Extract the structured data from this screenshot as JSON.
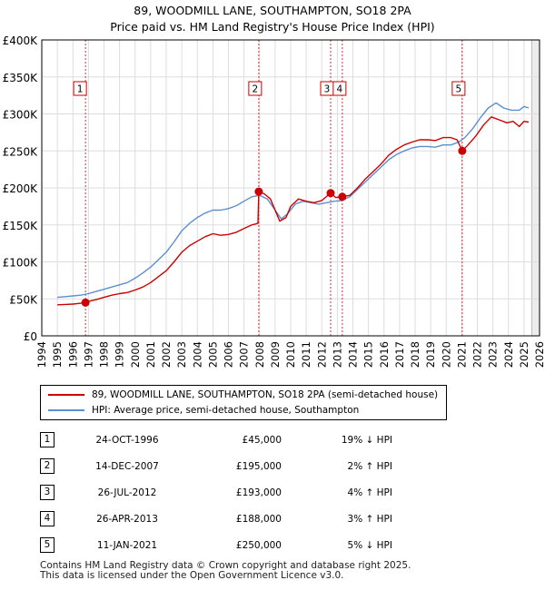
{
  "title_line1": "89, WOODMILL LANE, SOUTHAMPTON, SO18 2PA",
  "title_line2": "Price paid vs. HM Land Registry's House Price Index (HPI)",
  "colors": {
    "property": "#cc0000",
    "hpi": "#5b8fcf",
    "marker_line": "#cc0000",
    "grid": "#dddddd"
  },
  "chart_data": {
    "type": "line",
    "xlim": [
      1994,
      2026
    ],
    "ylim": [
      0,
      400000
    ],
    "y_ticks": [
      0,
      50000,
      100000,
      150000,
      200000,
      250000,
      300000,
      350000,
      400000
    ],
    "y_tick_labels": [
      "£0",
      "£50K",
      "£100K",
      "£150K",
      "£200K",
      "£250K",
      "£300K",
      "£350K",
      "£400K"
    ],
    "x_ticks": [
      1994,
      1995,
      1996,
      1997,
      1998,
      1999,
      2000,
      2001,
      2002,
      2003,
      2004,
      2005,
      2006,
      2007,
      2008,
      2009,
      2010,
      2011,
      2012,
      2013,
      2014,
      2015,
      2016,
      2017,
      2018,
      2019,
      2020,
      2021,
      2022,
      2023,
      2024,
      2025,
      2026
    ],
    "x_tick_labels": [
      "1994",
      "1995",
      "1996",
      "1997",
      "1998",
      "1999",
      "2000",
      "2001",
      "2002",
      "2003",
      "2004",
      "2005",
      "2006",
      "2007",
      "2008",
      "2009",
      "2010",
      "2011",
      "2012",
      "2013",
      "2014",
      "2015",
      "2016",
      "2017",
      "2018",
      "2019",
      "2020",
      "2021",
      "2022",
      "2023",
      "2024",
      "2025",
      "2026"
    ],
    "series": [
      {
        "name": "89, WOODMILL LANE, SOUTHAMPTON, SO18 2PA (semi-detached house)",
        "points": [
          [
            1995.0,
            42000
          ],
          [
            1995.5,
            42500
          ],
          [
            1996.0,
            43000
          ],
          [
            1996.5,
            44000
          ],
          [
            1996.81,
            45000
          ],
          [
            1997.0,
            46500
          ],
          [
            1997.5,
            49000
          ],
          [
            1998.0,
            52000
          ],
          [
            1998.5,
            55000
          ],
          [
            1999.0,
            57000
          ],
          [
            1999.5,
            58500
          ],
          [
            2000.0,
            62000
          ],
          [
            2000.5,
            66000
          ],
          [
            2001.0,
            72000
          ],
          [
            2001.5,
            80000
          ],
          [
            2002.0,
            88000
          ],
          [
            2002.5,
            100000
          ],
          [
            2003.0,
            113000
          ],
          [
            2003.5,
            122000
          ],
          [
            2004.0,
            128000
          ],
          [
            2004.5,
            134000
          ],
          [
            2005.0,
            138000
          ],
          [
            2005.5,
            136000
          ],
          [
            2006.0,
            137000
          ],
          [
            2006.5,
            140000
          ],
          [
            2007.0,
            145000
          ],
          [
            2007.5,
            150000
          ],
          [
            2007.9,
            152000
          ],
          [
            2007.95,
            195000
          ],
          [
            2008.3,
            192000
          ],
          [
            2008.7,
            185000
          ],
          [
            2009.0,
            170000
          ],
          [
            2009.3,
            155000
          ],
          [
            2009.7,
            160000
          ],
          [
            2010.0,
            175000
          ],
          [
            2010.5,
            185000
          ],
          [
            2011.0,
            182000
          ],
          [
            2011.5,
            180000
          ],
          [
            2012.0,
            183000
          ],
          [
            2012.57,
            193000
          ],
          [
            2012.9,
            187000
          ],
          [
            2013.32,
            188000
          ],
          [
            2013.8,
            190000
          ],
          [
            2014.3,
            200000
          ],
          [
            2014.8,
            212000
          ],
          [
            2015.3,
            222000
          ],
          [
            2015.8,
            232000
          ],
          [
            2016.3,
            244000
          ],
          [
            2016.8,
            252000
          ],
          [
            2017.3,
            258000
          ],
          [
            2017.8,
            262000
          ],
          [
            2018.3,
            265000
          ],
          [
            2018.8,
            265000
          ],
          [
            2019.3,
            264000
          ],
          [
            2019.8,
            268000
          ],
          [
            2020.3,
            268000
          ],
          [
            2020.7,
            265000
          ],
          [
            2021.03,
            250000
          ],
          [
            2021.4,
            258000
          ],
          [
            2021.9,
            270000
          ],
          [
            2022.4,
            285000
          ],
          [
            2022.9,
            296000
          ],
          [
            2023.4,
            292000
          ],
          [
            2023.9,
            288000
          ],
          [
            2024.3,
            290000
          ],
          [
            2024.7,
            283000
          ],
          [
            2025.0,
            290000
          ],
          [
            2025.3,
            289000
          ]
        ]
      },
      {
        "name": "HPI: Average price, semi-detached house, Southampton",
        "points": [
          [
            1995.0,
            52000
          ],
          [
            1995.5,
            53000
          ],
          [
            1996.0,
            54000
          ],
          [
            1996.5,
            55000
          ],
          [
            1997.0,
            57000
          ],
          [
            1997.5,
            60000
          ],
          [
            1998.0,
            63000
          ],
          [
            1998.5,
            66000
          ],
          [
            1999.0,
            69000
          ],
          [
            1999.5,
            72000
          ],
          [
            2000.0,
            78000
          ],
          [
            2000.5,
            85000
          ],
          [
            2001.0,
            93000
          ],
          [
            2001.5,
            103000
          ],
          [
            2002.0,
            113000
          ],
          [
            2002.5,
            127000
          ],
          [
            2003.0,
            142000
          ],
          [
            2003.5,
            152000
          ],
          [
            2004.0,
            160000
          ],
          [
            2004.5,
            166000
          ],
          [
            2005.0,
            170000
          ],
          [
            2005.5,
            170000
          ],
          [
            2006.0,
            172000
          ],
          [
            2006.5,
            176000
          ],
          [
            2007.0,
            182000
          ],
          [
            2007.5,
            188000
          ],
          [
            2008.0,
            190000
          ],
          [
            2008.5,
            185000
          ],
          [
            2009.0,
            170000
          ],
          [
            2009.4,
            158000
          ],
          [
            2009.8,
            165000
          ],
          [
            2010.3,
            178000
          ],
          [
            2010.8,
            182000
          ],
          [
            2011.3,
            180000
          ],
          [
            2011.8,
            178000
          ],
          [
            2012.3,
            180000
          ],
          [
            2012.8,
            182000
          ],
          [
            2013.3,
            183000
          ],
          [
            2013.8,
            188000
          ],
          [
            2014.3,
            198000
          ],
          [
            2014.8,
            208000
          ],
          [
            2015.3,
            218000
          ],
          [
            2015.8,
            228000
          ],
          [
            2016.3,
            238000
          ],
          [
            2016.8,
            245000
          ],
          [
            2017.3,
            250000
          ],
          [
            2017.8,
            254000
          ],
          [
            2018.3,
            256000
          ],
          [
            2018.8,
            256000
          ],
          [
            2019.3,
            255000
          ],
          [
            2019.8,
            258000
          ],
          [
            2020.3,
            258000
          ],
          [
            2020.8,
            262000
          ],
          [
            2021.2,
            268000
          ],
          [
            2021.7,
            280000
          ],
          [
            2022.2,
            295000
          ],
          [
            2022.7,
            308000
          ],
          [
            2023.2,
            315000
          ],
          [
            2023.7,
            308000
          ],
          [
            2024.2,
            305000
          ],
          [
            2024.7,
            305000
          ],
          [
            2025.0,
            310000
          ],
          [
            2025.3,
            308000
          ]
        ]
      }
    ],
    "sales": [
      {
        "n": "1",
        "x": 1996.81,
        "y": 45000
      },
      {
        "n": "2",
        "x": 2007.95,
        "y": 195000
      },
      {
        "n": "3",
        "x": 2012.57,
        "y": 193000
      },
      {
        "n": "4",
        "x": 2013.32,
        "y": 188000
      },
      {
        "n": "5",
        "x": 2021.03,
        "y": 250000
      }
    ],
    "future_from": 2025.5
  },
  "legend": {
    "property_label": "89, WOODMILL LANE, SOUTHAMPTON, SO18 2PA (semi-detached house)",
    "hpi_label": "HPI: Average price, semi-detached house, Southampton"
  },
  "sales_table": [
    {
      "n": "1",
      "date": "24-OCT-1996",
      "price": "£45,000",
      "hpi": "19% ↓ HPI"
    },
    {
      "n": "2",
      "date": "14-DEC-2007",
      "price": "£195,000",
      "hpi": "2% ↑ HPI"
    },
    {
      "n": "3",
      "date": "26-JUL-2012",
      "price": "£193,000",
      "hpi": "4% ↑ HPI"
    },
    {
      "n": "4",
      "date": "26-APR-2013",
      "price": "£188,000",
      "hpi": "3% ↑ HPI"
    },
    {
      "n": "5",
      "date": "11-JAN-2021",
      "price": "£250,000",
      "hpi": "5% ↓ HPI"
    }
  ],
  "footer_line1": "Contains HM Land Registry data © Crown copyright and database right 2025.",
  "footer_line2": "This data is licensed under the Open Government Licence v3.0."
}
